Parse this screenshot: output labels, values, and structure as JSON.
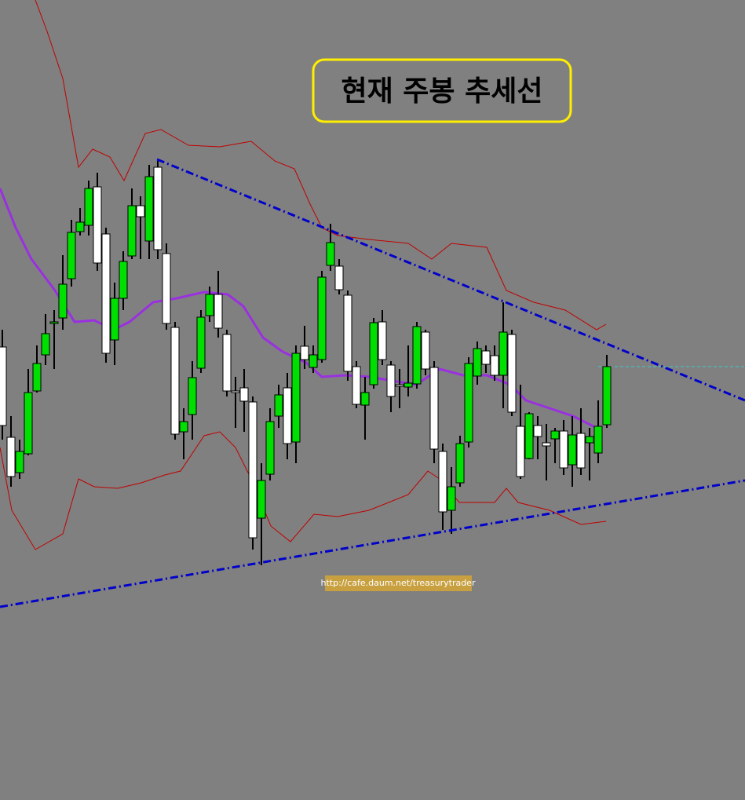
{
  "chart_data": {
    "type": "candlestick",
    "title": "현재 주봉 추세선",
    "source": "http://cafe.daum.net/treasurytrader",
    "up_color": "#00e000",
    "down_color": "#ffffff",
    "ylim": [
      0,
      1019
    ],
    "open": [
      577,
      462,
      417,
      441,
      521,
      567,
      607,
      614,
      664,
      724,
      732,
      781,
      721,
      586,
      639,
      693,
      757,
      712,
      806,
      696,
      602,
      469,
      491,
      550,
      617,
      644,
      593,
      521,
      525,
      507,
      359,
      415,
      489,
      525,
      456,
      578,
      551,
      561,
      681,
      680,
      643,
      552,
      503,
      529,
      609,
      554,
      529,
      526,
      530,
      596,
      551,
      444,
      369,
      404,
      456,
      540,
      572,
      566,
      541,
      593,
      476,
      435,
      477,
      455,
      460,
      470,
      427,
      467,
      455,
      442,
      478
    ],
    "high": [
      599,
      489,
      459,
      549,
      579,
      619,
      624,
      694,
      739,
      754,
      789,
      799,
      729,
      659,
      699,
      779,
      769,
      809,
      814,
      709,
      609,
      499,
      559,
      624,
      654,
      674,
      599,
      539,
      549,
      514,
      429,
      499,
      529,
      544,
      579,
      604,
      579,
      674,
      734,
      689,
      649,
      559,
      539,
      614,
      624,
      559,
      549,
      579,
      609,
      599,
      559,
      454,
      424,
      464,
      564,
      584,
      579,
      579,
      634,
      599,
      529,
      494,
      489,
      479,
      474,
      484,
      489,
      499,
      474,
      509,
      567
    ],
    "low": [
      459,
      399,
      409,
      439,
      519,
      554,
      549,
      599,
      654,
      719,
      719,
      674,
      557,
      554,
      624,
      689,
      689,
      689,
      689,
      599,
      459,
      434,
      459,
      544,
      609,
      589,
      514,
      474,
      469,
      319,
      299,
      407,
      474,
      434,
      429,
      549,
      544,
      557,
      674,
      644,
      534,
      499,
      459,
      524,
      554,
      494,
      499,
      514,
      524,
      541,
      429,
      344,
      339,
      399,
      449,
      529,
      544,
      534,
      499,
      489,
      409,
      434,
      434,
      407,
      429,
      414,
      399,
      414,
      407,
      429,
      474
    ],
    "close": [
      477,
      412,
      444,
      519,
      556,
      594,
      609,
      657,
      723,
      736,
      779,
      684,
      569,
      639,
      686,
      757,
      743,
      794,
      701,
      607,
      466,
      482,
      538,
      615,
      644,
      601,
      521,
      519,
      508,
      334,
      407,
      482,
      516,
      454,
      569,
      561,
      567,
      666,
      710,
      650,
      546,
      504,
      519,
      608,
      561,
      514,
      527,
      531,
      603,
      549,
      447,
      367,
      399,
      454,
      556,
      575,
      555,
      541,
      596,
      494,
      412,
      492,
      463,
      451,
      470,
      423,
      465,
      423,
      463,
      476,
      552
    ]
  }
}
